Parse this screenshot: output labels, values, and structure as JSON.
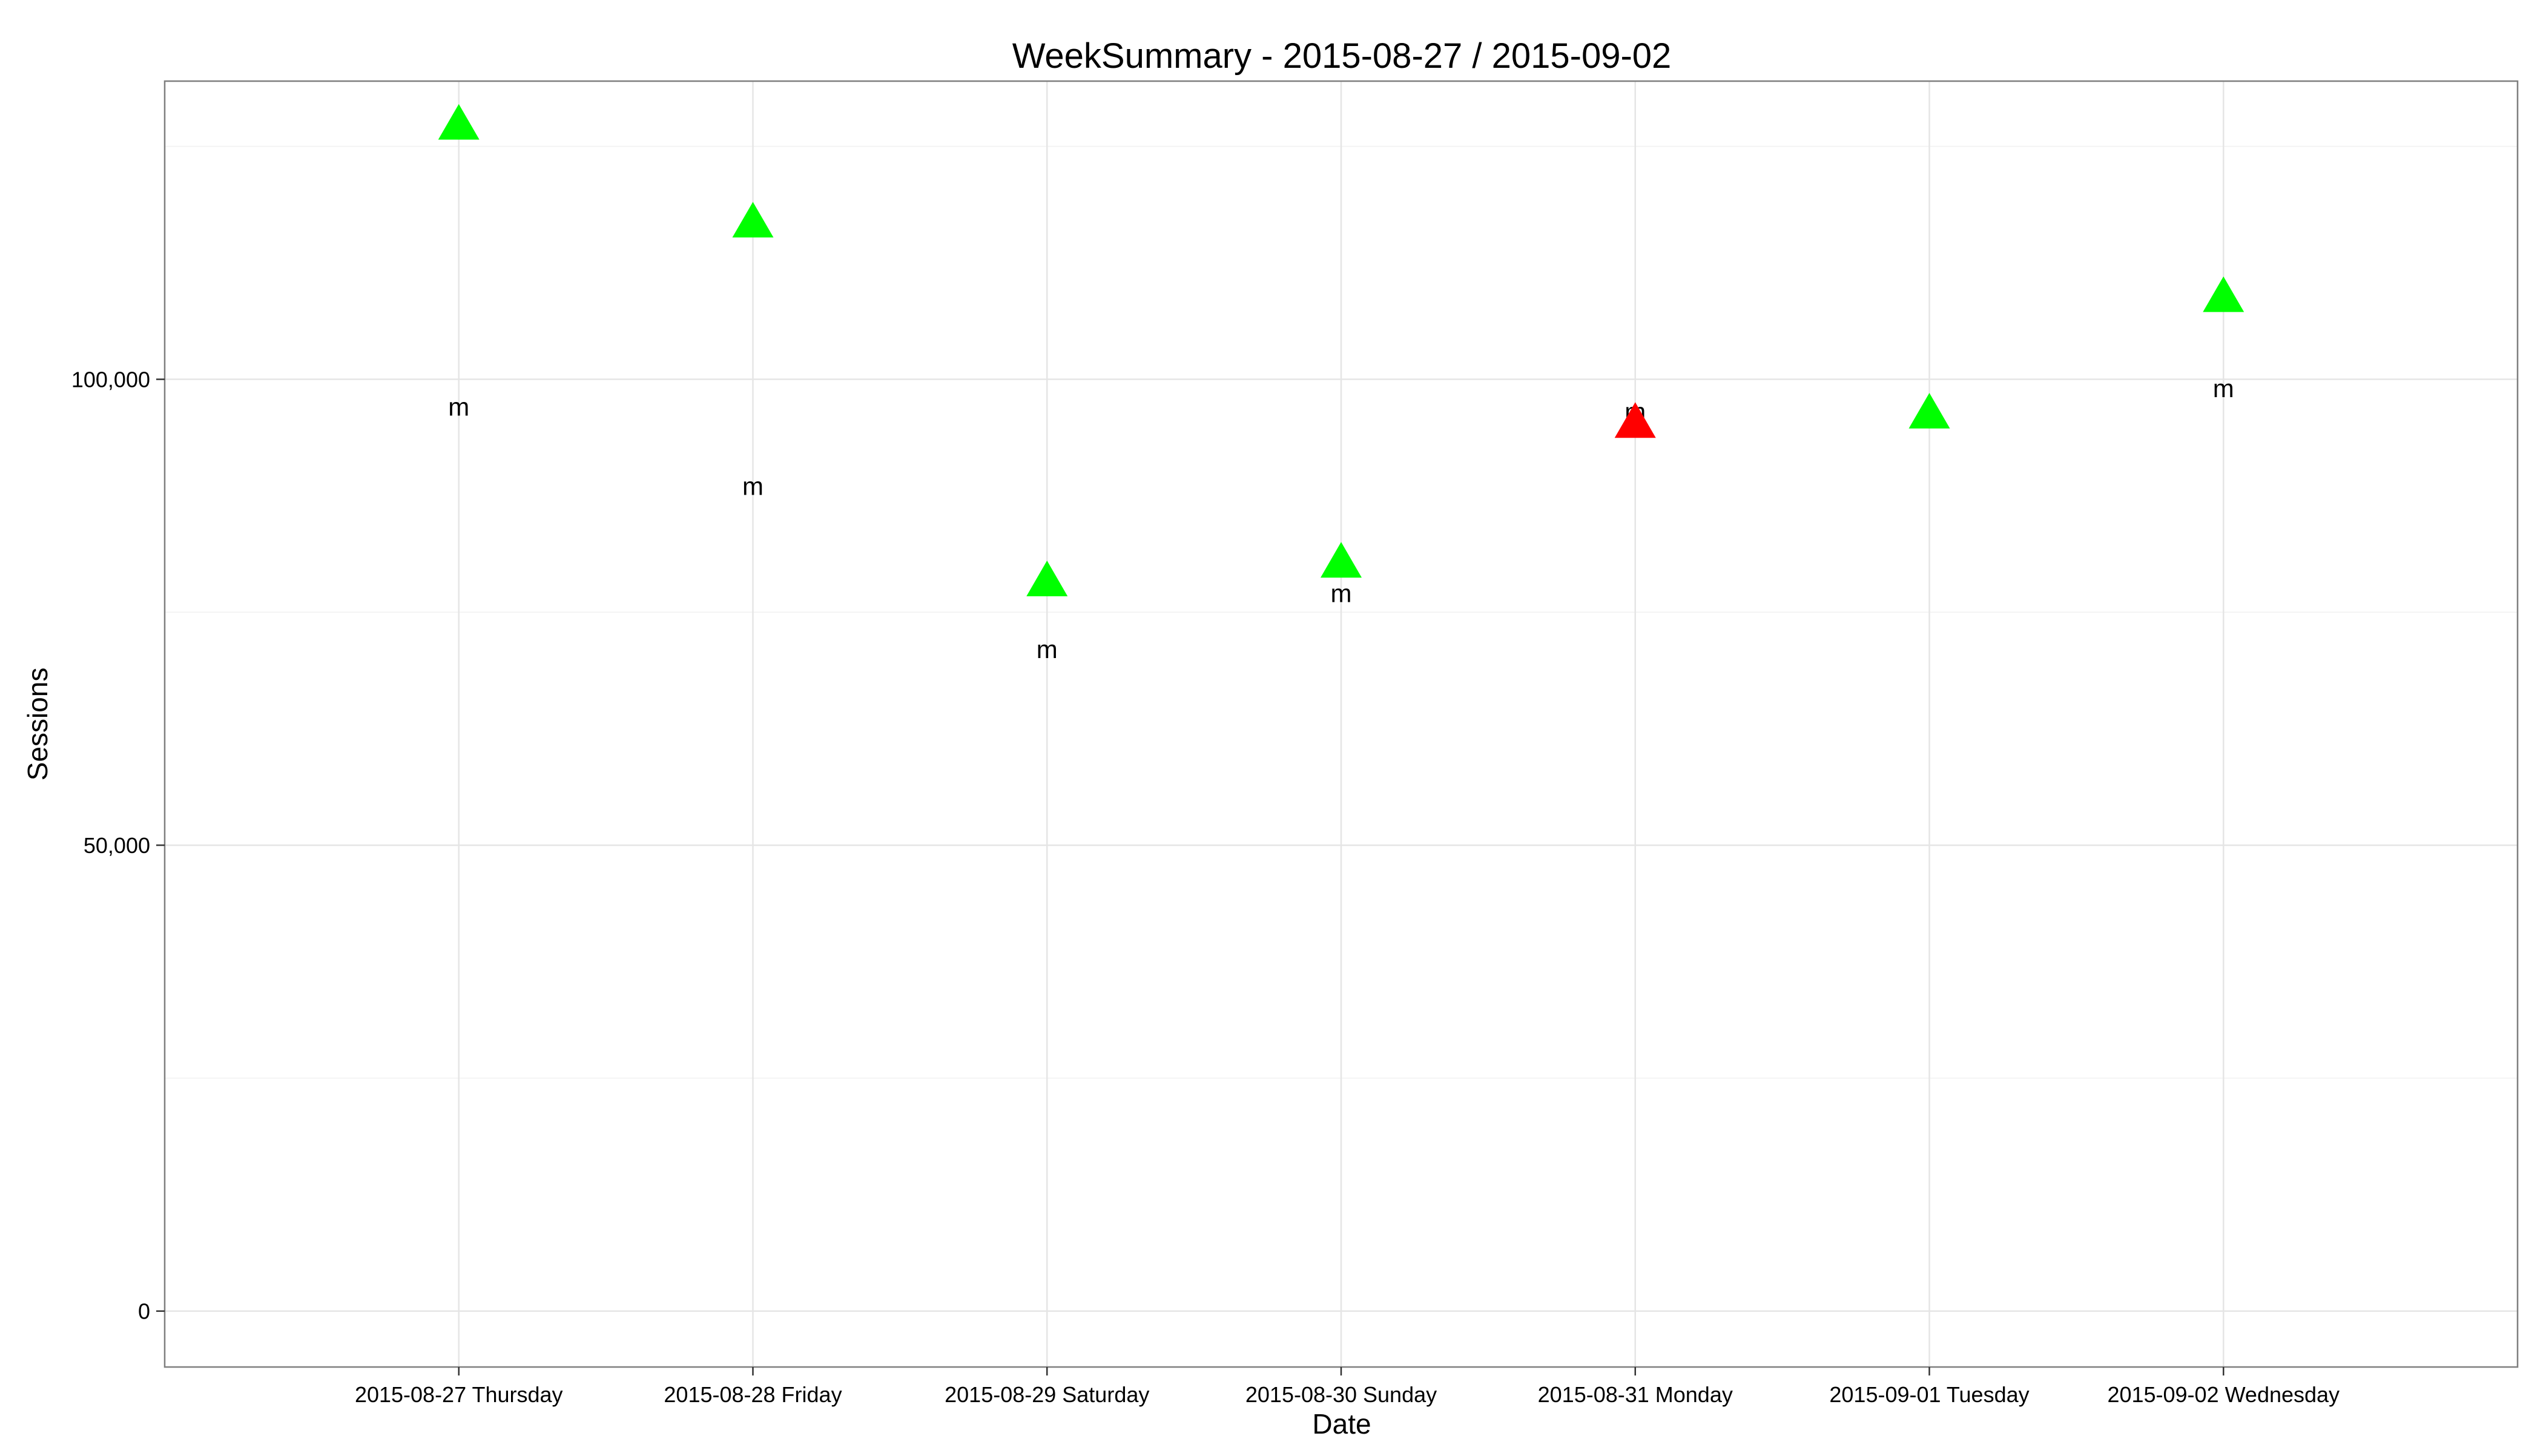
{
  "chart_data": {
    "type": "scatter",
    "title": "WeekSummary - 2015-08-27 / 2015-09-02",
    "xlabel": "Date",
    "ylabel": "Sessions",
    "categories": [
      "2015-08-27 Thursday",
      "2015-08-28 Friday",
      "2015-08-29 Saturday",
      "2015-08-30 Sunday",
      "2015-08-31 Monday",
      "2015-09-01 Tuesday",
      "2015-09-02 Wednesday"
    ],
    "ylim": [
      -6000,
      132000
    ],
    "yticks": [
      0,
      50000,
      100000
    ],
    "ytick_labels": [
      "0",
      "50,000",
      "100,000"
    ],
    "grid": true,
    "point_shape": "triangle",
    "values": [
      127000,
      116500,
      78000,
      80000,
      95000,
      96000,
      108500
    ],
    "point_colors": [
      "#00ff00",
      "#00ff00",
      "#00ff00",
      "#00ff00",
      "#ff0000",
      "#00ff00",
      "#00ff00"
    ],
    "annotation_text": "m",
    "annotation_values": [
      97000,
      88500,
      71000,
      77000,
      96500,
      null,
      99000
    ]
  }
}
